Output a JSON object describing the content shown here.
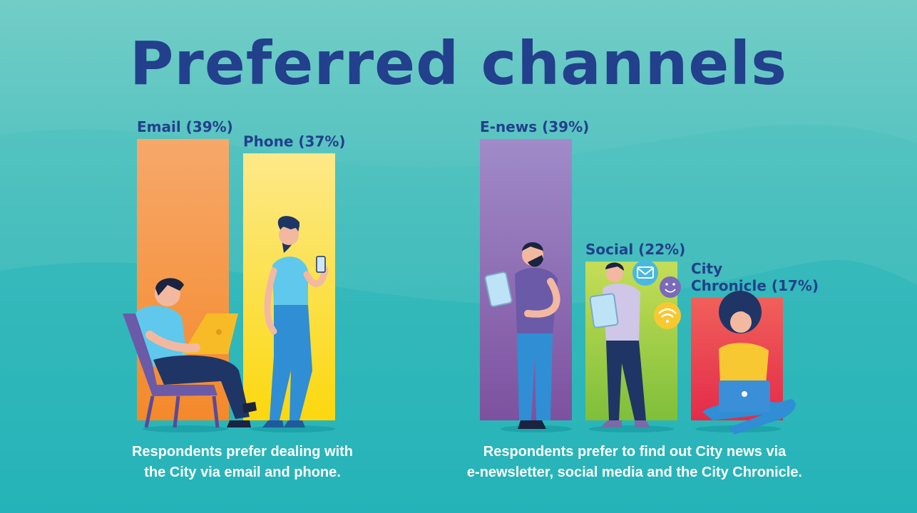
{
  "title": "Preferred channels",
  "colors": {
    "title": "#22408c",
    "email": [
      "#f6a86a",
      "#f4892a"
    ],
    "phone": [
      "#fde98a",
      "#fbd80e"
    ],
    "enews": [
      "#a08bc8",
      "#7d519f"
    ],
    "social": [
      "#c5dd57",
      "#7fbf3a"
    ],
    "chronicle": [
      "#f0605a",
      "#e42b4a"
    ],
    "background": [
      "#5fc8c3",
      "#18b0b8"
    ]
  },
  "chart_data": [
    {
      "type": "bar",
      "categories": [
        "Email",
        "Phone"
      ],
      "values": [
        39,
        37
      ],
      "labels": [
        "Email (39%)",
        "Phone (37%)"
      ],
      "ylim": [
        0,
        39
      ],
      "caption": "Respondents prefer dealing with the City via email and phone."
    },
    {
      "type": "bar",
      "categories": [
        "E-news",
        "Social",
        "City Chronicle"
      ],
      "values": [
        39,
        22,
        17
      ],
      "labels": [
        "E-news (39%)",
        "Social (22%)",
        "City\nChronicle (17%)"
      ],
      "ylim": [
        0,
        39
      ],
      "caption": "Respondents prefer to find out City news via e-newsletter, social media and the City Chronicle."
    }
  ],
  "captions": {
    "left": [
      "Respondents prefer dealing with",
      "the City via email and phone."
    ],
    "right": [
      "Respondents prefer to find out City news via",
      "e-newsletter, social media and the City Chronicle."
    ]
  },
  "icons": [
    "laptop-user-icon",
    "phone-user-icon",
    "tablet-user-icon",
    "mail-icon",
    "smiley-icon",
    "wifi-icon",
    "sitting-laptop-user-icon"
  ]
}
